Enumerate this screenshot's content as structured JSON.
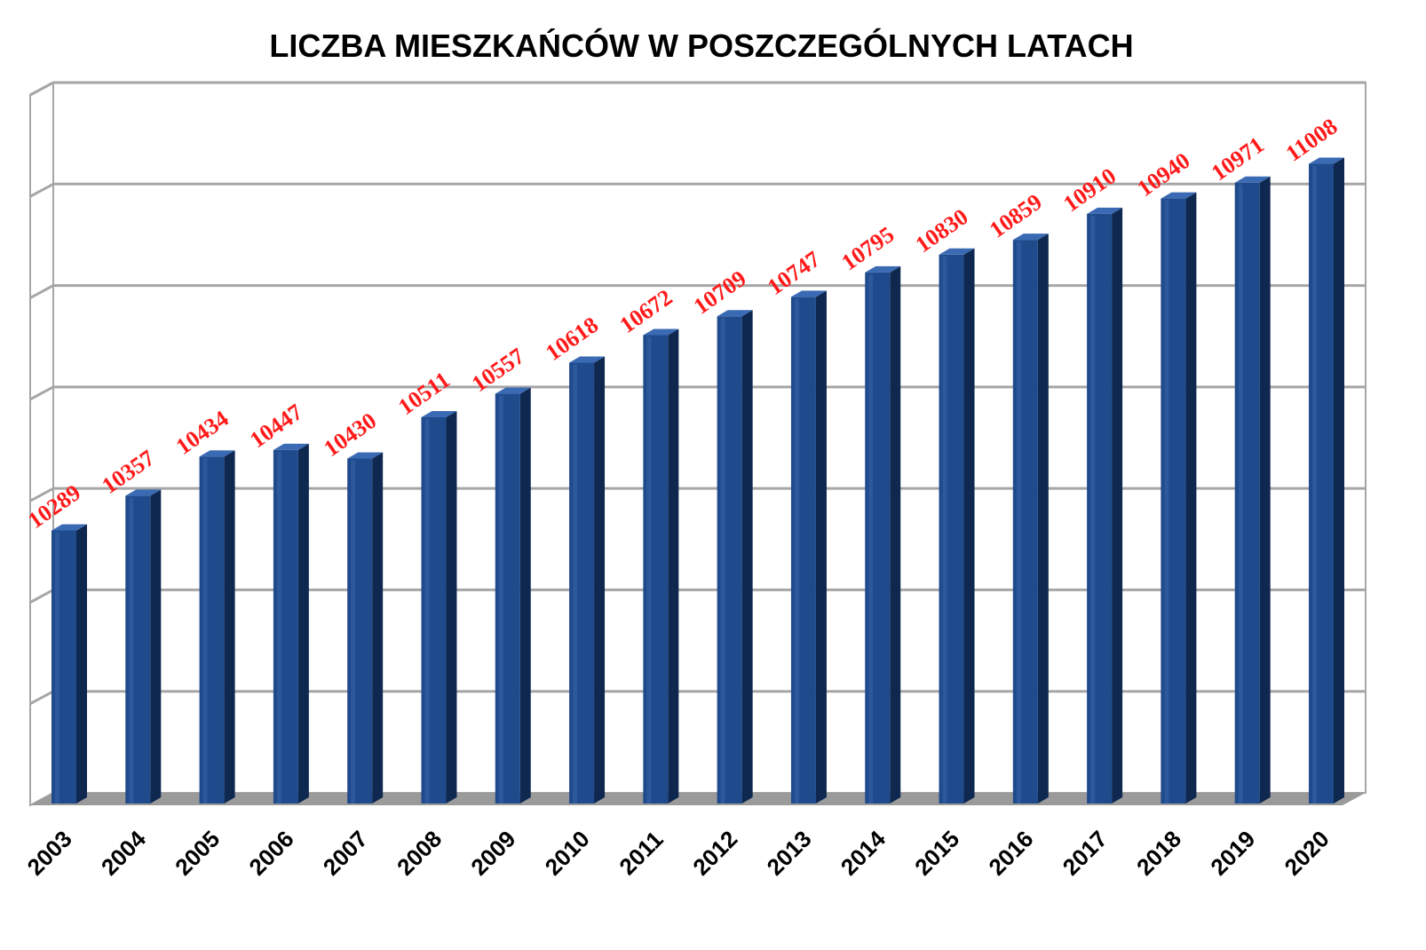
{
  "chart_data": {
    "type": "bar",
    "title": "LICZBA MIESZKAŃCÓW  W POSZCZEGÓLNYCH LATACH",
    "xlabel": "",
    "ylabel": "",
    "categories": [
      "2003",
      "2004",
      "2005",
      "2006",
      "2007",
      "2008",
      "2009",
      "2010",
      "2011",
      "2012",
      "2013",
      "2014",
      "2015",
      "2016",
      "2017",
      "2018",
      "2019",
      "2020"
    ],
    "values": [
      10289,
      10357,
      10434,
      10447,
      10430,
      10511,
      10557,
      10618,
      10672,
      10709,
      10747,
      10795,
      10830,
      10859,
      10910,
      10940,
      10971,
      11008
    ],
    "ylim": [
      9750,
      11150
    ],
    "grid": true,
    "legend": "none",
    "colors": {
      "bar_front": "#1f4a8c",
      "bar_side": "#0f2850",
      "bar_top": "#3a6ab3",
      "value_label": "#ff1a1a",
      "grid": "#a6a6a6",
      "floor": "#9a9a9a"
    }
  }
}
